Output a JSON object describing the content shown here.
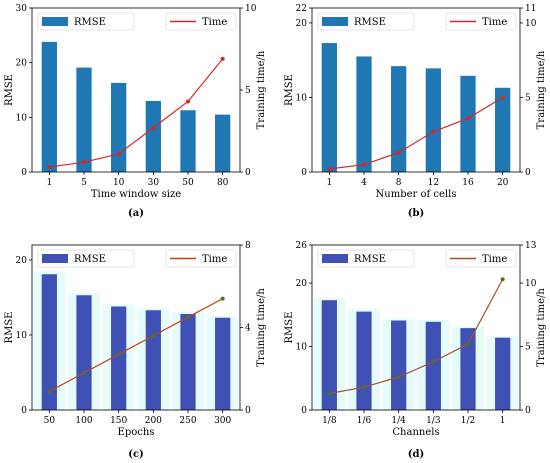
{
  "chart_data": [
    {
      "type": "bar",
      "panel_label": "(a)",
      "categories": [
        "1",
        "5",
        "10",
        "30",
        "50",
        "80"
      ],
      "xlabel": "Time window size",
      "ylabel": "RMSE",
      "y2label": "Training time/h",
      "ylim": [
        0,
        30
      ],
      "yticks": [
        "0",
        "10",
        "20",
        "30"
      ],
      "y2lim": [
        0,
        10
      ],
      "y2ticks": [
        "0",
        "5",
        "10"
      ],
      "grid": false,
      "legend_position": "top",
      "background_bars": false,
      "series": [
        {
          "name": "RMSE",
          "type": "bar",
          "values": [
            23.8,
            19.1,
            16.3,
            13.0,
            11.3,
            10.5
          ]
        },
        {
          "name": "Time",
          "type": "line",
          "values": [
            0.3,
            0.6,
            1.1,
            2.7,
            4.3,
            6.9
          ]
        }
      ],
      "colors": {
        "bar": "#1f77b4",
        "line": "#d62728",
        "marker": "#d62728"
      }
    },
    {
      "type": "bar",
      "panel_label": "(b)",
      "categories": [
        "1",
        "4",
        "8",
        "12",
        "16",
        "20"
      ],
      "xlabel": "Number of cells",
      "ylabel": "RMSE",
      "y2label": "Training time/h",
      "ylim": [
        0,
        22
      ],
      "yticks": [
        "0",
        "10",
        "20",
        "22"
      ],
      "y2lim": [
        0,
        11
      ],
      "y2ticks": [
        "0",
        "5",
        "10",
        "11"
      ],
      "grid": false,
      "legend_position": "top",
      "background_bars": false,
      "series": [
        {
          "name": "RMSE",
          "type": "bar",
          "values": [
            17.3,
            15.5,
            14.2,
            13.9,
            12.9,
            11.3
          ]
        },
        {
          "name": "Time",
          "type": "line",
          "values": [
            0.2,
            0.5,
            1.3,
            2.7,
            3.6,
            5.0
          ]
        }
      ],
      "colors": {
        "bar": "#1f77b4",
        "line": "#d62728",
        "marker": "#d62728"
      }
    },
    {
      "type": "bar",
      "panel_label": "(c)",
      "categories": [
        "50",
        "100",
        "150",
        "200",
        "250",
        "300"
      ],
      "xlabel": "Epochs",
      "ylabel": "RMSE",
      "y2label": "Training time/h",
      "ylim": [
        0,
        22
      ],
      "yticks": [
        "0",
        "10",
        "20"
      ],
      "y2lim": [
        0,
        8
      ],
      "y2ticks": [
        "0",
        "4",
        "8"
      ],
      "grid": false,
      "legend_position": "top",
      "background_bars": true,
      "series": [
        {
          "name": "RMSE",
          "type": "bar",
          "values": [
            18.1,
            15.3,
            13.8,
            13.3,
            12.8,
            12.3
          ]
        },
        {
          "name": "Time",
          "type": "line",
          "values": [
            0.9,
            1.8,
            2.7,
            3.6,
            4.5,
            5.4
          ]
        }
      ],
      "colors": {
        "bar": "#3f51b5",
        "line": "#c1440e",
        "marker": "#556b2f",
        "background": "#e6fbfb"
      }
    },
    {
      "type": "bar",
      "panel_label": "(d)",
      "categories": [
        "1/8",
        "1/6",
        "1/4",
        "1/3",
        "1/2",
        "1"
      ],
      "xlabel": "Channels",
      "ylabel": "RMSE",
      "y2label": "Training time/h",
      "ylim": [
        0,
        26
      ],
      "yticks": [
        "0",
        "10",
        "20",
        "26"
      ],
      "y2lim": [
        0,
        13
      ],
      "y2ticks": [
        "0",
        "5",
        "10",
        "13"
      ],
      "grid": false,
      "legend_position": "top",
      "background_bars": true,
      "series": [
        {
          "name": "RMSE",
          "type": "bar",
          "values": [
            17.3,
            15.5,
            14.1,
            13.9,
            12.9,
            11.4
          ]
        },
        {
          "name": "Time",
          "type": "line",
          "values": [
            1.3,
            1.8,
            2.6,
            3.8,
            5.2,
            10.3
          ]
        }
      ],
      "colors": {
        "bar": "#3f51b5",
        "line": "#a0522d",
        "marker": "#556b2f",
        "background": "#e6fbfb"
      }
    }
  ]
}
